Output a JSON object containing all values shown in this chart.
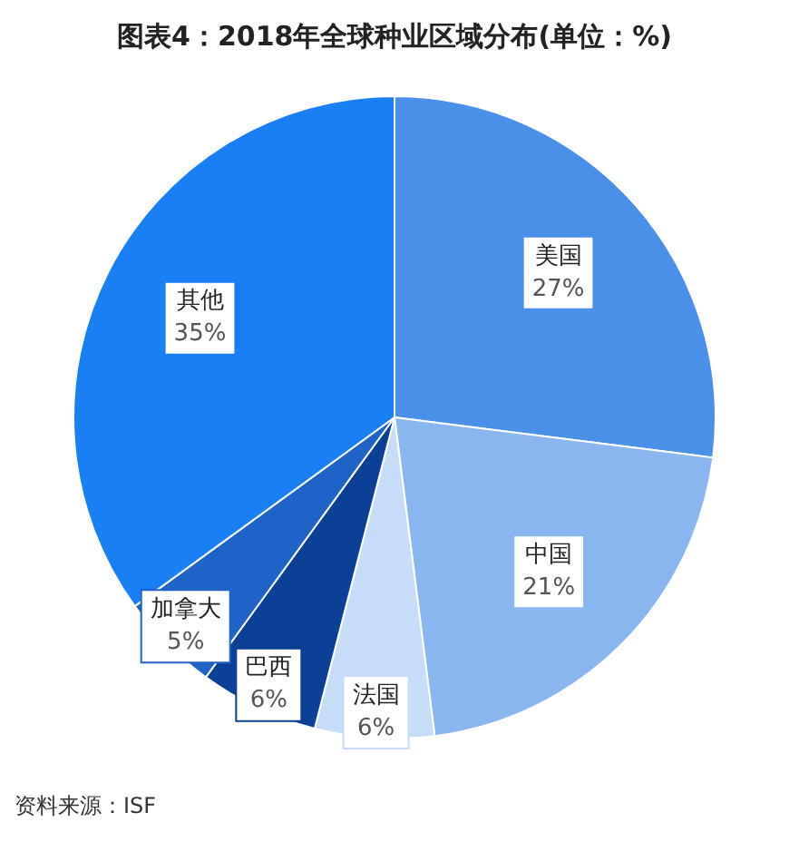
{
  "chart_data": {
    "type": "pie",
    "title": "图表4：2018年全球种业区域分布(单位：%)",
    "categories": [
      "美国",
      "中国",
      "法国",
      "巴西",
      "加拿大",
      "其他"
    ],
    "values": [
      27,
      21,
      6,
      6,
      5,
      35
    ],
    "value_labels": [
      "27%",
      "21%",
      "6%",
      "6%",
      "5%",
      "35%"
    ],
    "colors": [
      "#4a8fe8",
      "#8ab6f0",
      "#c6dcf8",
      "#0c3f96",
      "#1f62c8",
      "#1a7ef5"
    ],
    "legend": false,
    "annotations": [
      "资料来源：ISF"
    ]
  }
}
